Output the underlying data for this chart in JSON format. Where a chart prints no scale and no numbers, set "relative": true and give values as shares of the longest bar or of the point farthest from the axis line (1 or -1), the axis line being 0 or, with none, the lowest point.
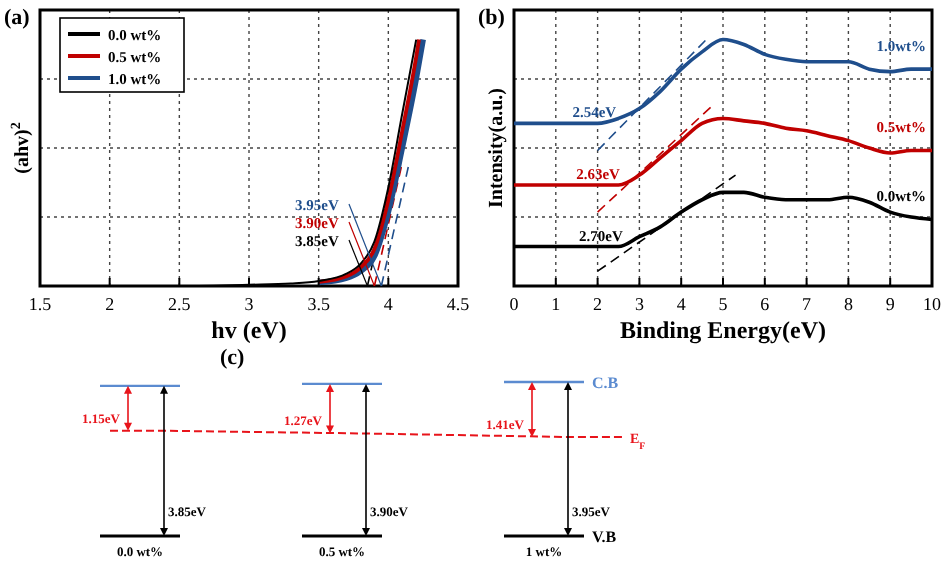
{
  "chart_data": [
    {
      "type": "line",
      "title": "(a)",
      "xlabel": "hv (eV)",
      "ylabel": "(ahv)$^{2}$",
      "relative": true,
      "xlim": [
        1.5,
        4.5
      ],
      "xticks": [
        1.5,
        2,
        2.5,
        3,
        3.5,
        4,
        4.5
      ],
      "grid": true,
      "legend": "top left",
      "line_style": "solid",
      "series": [
        {
          "name": "0.0 wt%",
          "color": "#000000",
          "x": [
            1.5,
            2,
            2.5,
            3,
            3.3,
            3.5,
            3.7,
            3.8,
            3.9,
            4.0,
            4.1,
            4.2
          ],
          "values": [
            0,
            0,
            0,
            0.005,
            0.01,
            0.02,
            0.05,
            0.09,
            0.18,
            0.4,
            0.7,
            1.0
          ]
        },
        {
          "name": "0.5 wt%",
          "color": "#c00000",
          "x": [
            3.5,
            3.7,
            3.8,
            3.9,
            4.0,
            4.1,
            4.2,
            4.22
          ],
          "values": [
            0.017,
            0.04,
            0.075,
            0.15,
            0.35,
            0.63,
            0.93,
            1.0
          ]
        },
        {
          "name": "1.0 wt%",
          "color": "#1f4e8c",
          "x": [
            3.5,
            3.7,
            3.8,
            3.9,
            4.0,
            4.1,
            4.2,
            4.25
          ],
          "values": [
            0.014,
            0.032,
            0.06,
            0.12,
            0.3,
            0.56,
            0.84,
            1.0
          ]
        },
        {
          "type": "line",
          "line_style": "dashed",
          "color": "#000000",
          "x": [
            3.85,
            4.05
          ],
          "values": [
            0,
            0.5
          ]
        },
        {
          "type": "line",
          "line_style": "dashed",
          "color": "#c00000",
          "x": [
            3.9,
            4.1
          ],
          "values": [
            0,
            0.5
          ]
        },
        {
          "type": "line",
          "line_style": "dashed",
          "color": "#1f4e8c",
          "x": [
            3.95,
            4.15
          ],
          "values": [
            0,
            0.5
          ]
        }
      ],
      "annotations": [
        {
          "text": "3.95eV",
          "x": 3.95,
          "y": 0
        },
        {
          "text": "3.90eV",
          "x": 3.9,
          "y": 0
        },
        {
          "text": "3.85eV",
          "x": 3.85,
          "y": 0
        }
      ]
    },
    {
      "type": "line",
      "title": "(b)",
      "xlabel": "Binding Energy(eV)",
      "ylabel": "Intensity(a.u.)",
      "relative": true,
      "xlim": [
        0,
        10
      ],
      "xticks": [
        0,
        1,
        2,
        3,
        4,
        5,
        6,
        7,
        8,
        9,
        10
      ],
      "grid": true,
      "legend": false,
      "line_style": "solid",
      "series": [
        {
          "name": "0.0wt%",
          "color": "#000000",
          "x": [
            0,
            1,
            2,
            2.5,
            3,
            3.5,
            4,
            4.5,
            5,
            5.5,
            6,
            6.5,
            7,
            7.5,
            8,
            8.5,
            9,
            9.5,
            10
          ],
          "values": [
            0.16,
            0.16,
            0.16,
            0.16,
            0.2,
            0.24,
            0.3,
            0.35,
            0.38,
            0.38,
            0.36,
            0.35,
            0.35,
            0.35,
            0.36,
            0.34,
            0.3,
            0.28,
            0.27
          ]
        },
        {
          "name": "0.5wt%",
          "color": "#c00000",
          "x": [
            0,
            1,
            2,
            2.5,
            3,
            3.5,
            4,
            4.5,
            5,
            5.5,
            6,
            6.5,
            7,
            7.5,
            8,
            8.5,
            9,
            9.5,
            10
          ],
          "values": [
            0.41,
            0.41,
            0.41,
            0.41,
            0.45,
            0.52,
            0.59,
            0.66,
            0.68,
            0.67,
            0.66,
            0.64,
            0.63,
            0.61,
            0.59,
            0.56,
            0.54,
            0.55,
            0.55
          ]
        },
        {
          "name": "1.0wt%",
          "color": "#1f4e8c",
          "x": [
            0,
            1,
            2,
            2.5,
            3,
            3.5,
            4,
            4.5,
            5,
            5.5,
            6,
            6.5,
            7,
            7.5,
            8,
            8.5,
            9,
            9.5,
            10
          ],
          "values": [
            0.66,
            0.66,
            0.66,
            0.68,
            0.72,
            0.79,
            0.88,
            0.95,
            1,
            0.98,
            0.94,
            0.92,
            0.91,
            0.91,
            0.91,
            0.88,
            0.87,
            0.88,
            0.88
          ]
        },
        {
          "type": "line",
          "line_style": "dashed",
          "color": "#000000",
          "x": [
            2.0,
            5.3
          ],
          "values": [
            0.06,
            0.45
          ]
        },
        {
          "type": "line",
          "line_style": "dashed",
          "color": "#c00000",
          "x": [
            2.0,
            4.8
          ],
          "values": [
            0.3,
            0.74
          ]
        },
        {
          "type": "line",
          "line_style": "dashed",
          "color": "#1f4e8c",
          "x": [
            2.0,
            4.6
          ],
          "values": [
            0.55,
            1.0
          ]
        }
      ],
      "annotations": [
        {
          "text": "2.70eV",
          "x": 2.7,
          "y": 0.16
        },
        {
          "text": "2.63eV",
          "x": 2.63,
          "y": 0.41
        },
        {
          "text": "2.54eV",
          "x": 2.54,
          "y": 0.66
        }
      ]
    },
    {
      "type": "other",
      "title": "(c)",
      "categories": [
        "0.0 wt%",
        "0.5 wt%",
        "1 wt%"
      ],
      "series": [
        {
          "color": "#000000",
          "values": [
            3.85,
            3.9,
            3.95
          ],
          "value_labels": [
            "3.85eV",
            "3.90eV",
            "3.95eV"
          ]
        },
        {
          "color": "#e8141b",
          "values": [
            1.15,
            1.27,
            1.41
          ],
          "value_labels": [
            "1.15eV",
            "1.27eV",
            "1.41eV"
          ]
        }
      ],
      "annotations": [
        "C.B",
        "E$_{F}$",
        "V.B"
      ]
    }
  ]
}
